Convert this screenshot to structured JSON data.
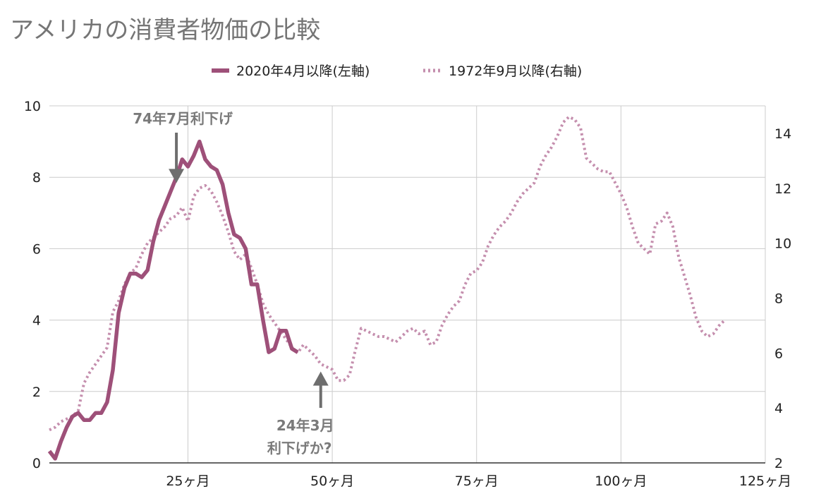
{
  "chart_data": {
    "type": "line",
    "title": "アメリカの消費者物価の比較",
    "legend": {
      "placement": "top-center",
      "entries": [
        "2020年4月以降(左軸)",
        "1972年9月以降(右軸)"
      ]
    },
    "x_axis": {
      "range": [
        1,
        125
      ],
      "ticks": [
        25,
        50,
        75,
        100,
        125
      ],
      "tick_labels": [
        "25ヶ月",
        "50ヶ月",
        "75ヶ月",
        "100ヶ月",
        "125ヶ月"
      ],
      "grid": true
    },
    "y_axis_left": {
      "range": [
        0,
        10
      ],
      "ticks": [
        0,
        2,
        4,
        6,
        8,
        10
      ],
      "grid": true
    },
    "y_axis_right": {
      "range": [
        2,
        15
      ],
      "ticks": [
        2,
        4,
        6,
        8,
        10,
        12,
        14
      ],
      "grid": false
    },
    "series": [
      {
        "name": "2020年4月以降(左軸)",
        "axis": "left",
        "style": "solid",
        "color": "#9e5079",
        "x": [
          1,
          2,
          3,
          4,
          5,
          6,
          7,
          8,
          9,
          10,
          11,
          12,
          13,
          14,
          15,
          16,
          17,
          18,
          19,
          20,
          21,
          22,
          23,
          24,
          25,
          26,
          27,
          28,
          29,
          30,
          31,
          32,
          33,
          34,
          35,
          36,
          37,
          38,
          39,
          40,
          41,
          42,
          43,
          44
        ],
        "values": [
          0.33,
          0.12,
          0.6,
          1.0,
          1.3,
          1.4,
          1.2,
          1.2,
          1.4,
          1.4,
          1.7,
          2.6,
          4.2,
          4.9,
          5.3,
          5.3,
          5.2,
          5.4,
          6.2,
          6.8,
          7.2,
          7.6,
          8.0,
          8.5,
          8.3,
          8.6,
          9.0,
          8.5,
          8.3,
          8.2,
          7.8,
          7.0,
          6.4,
          6.3,
          6.0,
          5.0,
          5.0,
          4.0,
          3.1,
          3.2,
          3.7,
          3.7,
          3.2,
          3.1
        ]
      },
      {
        "name": "1972年9月以降(右軸)",
        "axis": "right",
        "style": "dotted",
        "color": "#c58fae",
        "x": [
          1,
          2,
          3,
          4,
          5,
          6,
          7,
          8,
          9,
          10,
          11,
          12,
          13,
          14,
          15,
          16,
          17,
          18,
          19,
          20,
          21,
          22,
          23,
          24,
          25,
          26,
          27,
          28,
          29,
          30,
          31,
          32,
          33,
          34,
          35,
          36,
          37,
          38,
          39,
          40,
          41,
          42,
          43,
          44,
          45,
          46,
          47,
          48,
          49,
          50,
          51,
          52,
          53,
          54,
          55,
          56,
          57,
          58,
          59,
          60,
          61,
          62,
          63,
          64,
          65,
          66,
          67,
          68,
          69,
          70,
          71,
          72,
          73,
          74,
          75,
          76,
          77,
          78,
          79,
          80,
          81,
          82,
          83,
          84,
          85,
          86,
          87,
          88,
          89,
          90,
          91,
          92,
          93,
          94,
          95,
          96,
          97,
          98,
          99,
          100,
          101,
          102,
          103,
          104,
          105,
          106,
          107,
          108,
          109,
          110,
          111,
          112,
          113,
          114,
          115,
          116,
          117,
          118
        ],
        "values": [
          3.2,
          3.3,
          3.5,
          3.6,
          3.7,
          3.9,
          4.9,
          5.3,
          5.6,
          5.9,
          6.2,
          7.5,
          7.9,
          8.5,
          8.9,
          9.1,
          9.6,
          10.0,
          10.2,
          10.4,
          10.6,
          10.9,
          11.0,
          11.3,
          10.8,
          11.7,
          12.0,
          12.1,
          11.9,
          11.5,
          11.0,
          10.4,
          9.7,
          9.4,
          9.6,
          9.1,
          8.5,
          7.8,
          7.4,
          7.1,
          6.8,
          6.5,
          6.2,
          6.0,
          6.3,
          6.1,
          5.9,
          5.6,
          5.5,
          5.4,
          5.0,
          5.0,
          5.2,
          6.1,
          6.9,
          6.8,
          6.7,
          6.6,
          6.6,
          6.5,
          6.4,
          6.6,
          6.8,
          6.9,
          6.7,
          6.8,
          6.3,
          6.4,
          7.0,
          7.4,
          7.7,
          7.9,
          8.5,
          8.9,
          9.0,
          9.3,
          9.9,
          10.3,
          10.6,
          10.8,
          11.1,
          11.5,
          11.8,
          12.0,
          12.2,
          12.8,
          13.2,
          13.5,
          13.9,
          14.4,
          14.6,
          14.5,
          14.2,
          13.1,
          12.9,
          12.7,
          12.6,
          12.6,
          12.2,
          11.8,
          11.3,
          10.6,
          10.0,
          9.8,
          9.6,
          10.7,
          10.8,
          11.1,
          10.6,
          9.5,
          8.8,
          8.1,
          7.3,
          6.8,
          6.6,
          6.7,
          7.0,
          7.2
        ]
      }
    ],
    "annotations": [
      {
        "text": "74年7月利下げ",
        "x": 23,
        "y_left": 7.8,
        "direction": "down"
      },
      {
        "text": "24年3月",
        "text2": "利下げか?",
        "x": 48,
        "y_left": 2.6,
        "direction": "up"
      }
    ]
  }
}
